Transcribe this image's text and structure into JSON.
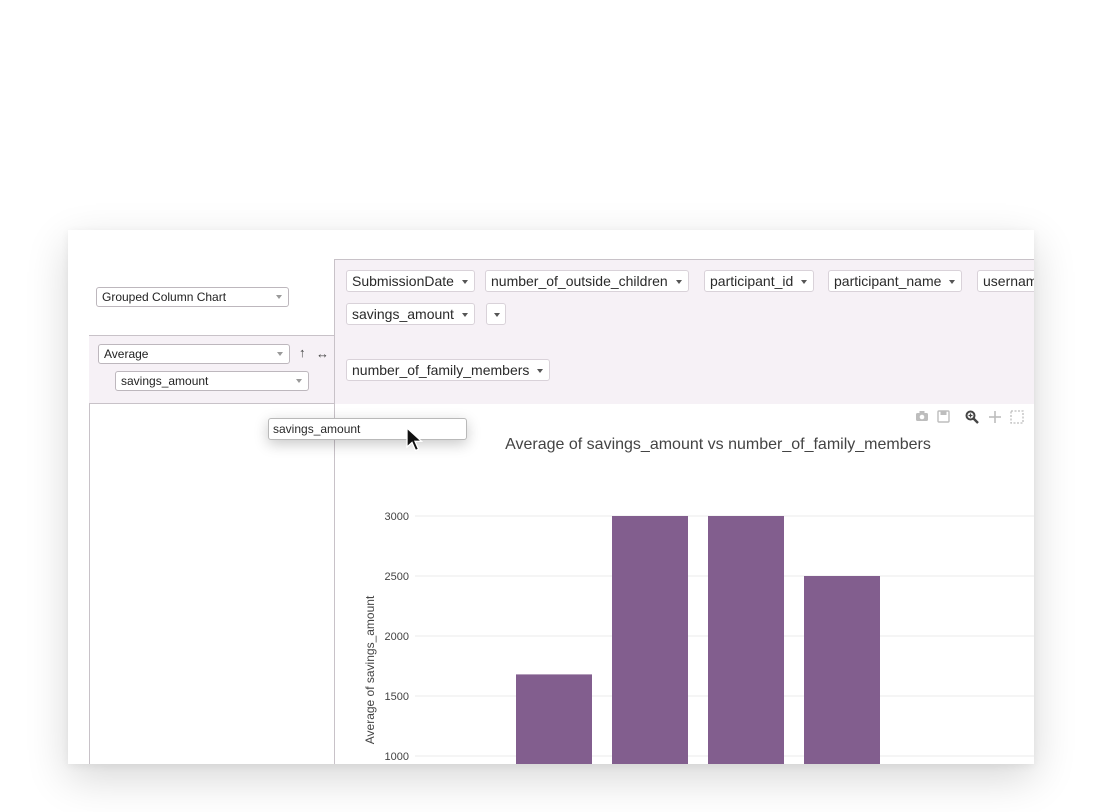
{
  "chart_type_select": {
    "value": "Grouped Column Chart"
  },
  "aggregator": {
    "function": "Average",
    "field": "savings_amount",
    "sort_icon": "arrow-up-icon",
    "swap_icon": "arrows-horizontal-icon"
  },
  "columns_attrs": [
    "SubmissionDate",
    "number_of_outside_children",
    "participant_id",
    "participant_name",
    "usernam"
  ],
  "columns_attrs_row2": [
    "savings_amount"
  ],
  "rows_attrs": [
    "number_of_family_members"
  ],
  "drag_ghost_label": "savings_amount",
  "modebar_icons": [
    "camera-icon",
    "save-icon",
    "zoom-icon",
    "pan-icon",
    "box-select-icon"
  ],
  "chart_data": {
    "type": "bar",
    "title": "Average of savings_amount vs number_of_family_members",
    "ylabel": "Average of savings_amount",
    "xlabel": "",
    "values": [
      1680,
      3000,
      3000,
      2500
    ],
    "ylim_visible": [
      1000,
      3000
    ],
    "yticks": [
      1000,
      1500,
      2000,
      2500,
      3000
    ],
    "ytick_labels": [
      "1000",
      "1500",
      "2000",
      "2500",
      "3000"
    ],
    "bar_color": "#825e8e",
    "grid": true
  }
}
